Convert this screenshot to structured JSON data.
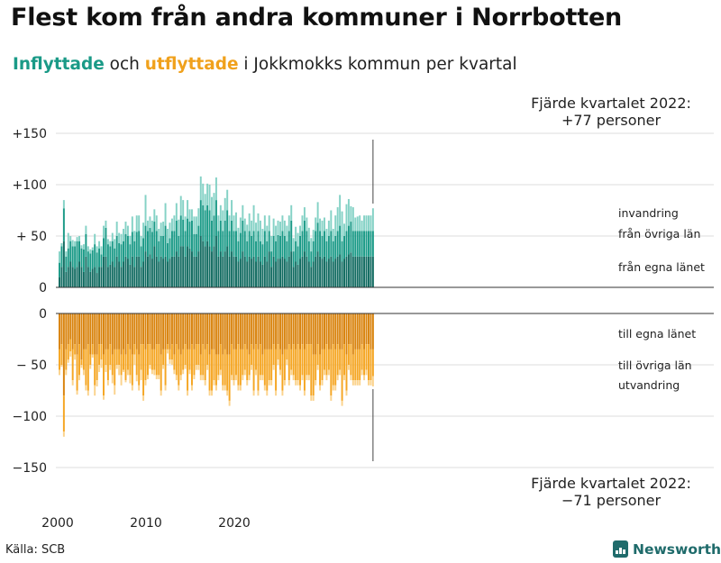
{
  "title": "Flest kom från andra kommuner i Norrbotten",
  "subtitle": {
    "part1": "Inflyttade",
    "part2": " och ",
    "part3": "utflyttade",
    "part4": " i Jokkmokks kommun per kvartal"
  },
  "colors": {
    "in_egna": "#126b61",
    "in_ovriga": "#1a9a87",
    "in_invandring": "#85d2c6",
    "out_egna": "#d9830d",
    "out_ovriga": "#f5a623",
    "out_utvandring": "#fbd38d",
    "grid": "#dddddd",
    "baseline": "#333333"
  },
  "source": "Källa: SCB",
  "brand": {
    "name": "Newsworthy",
    "icon": "bar-chart-logo-icon"
  },
  "chart_data": {
    "type": "bar",
    "stacked": true,
    "diverging": true,
    "x_start": "2000 Q1",
    "x_ticks": [
      "2000",
      "2010",
      "2020"
    ],
    "y_ticks_top": [
      "+150",
      "+100",
      "+ 50",
      "0"
    ],
    "y_ticks_bottom": [
      "0",
      "− 50",
      "−100",
      "−150"
    ],
    "ylim_top": [
      0,
      150
    ],
    "ylim_bottom": [
      -150,
      0
    ],
    "grid": true,
    "annotation_top": {
      "line1": "Fjärde kvartalet 2022:",
      "line2": "+77 personer"
    },
    "annotation_bottom": {
      "line1": "Fjärde kvartalet 2022:",
      "line2": "−71 personer"
    },
    "series_in": [
      {
        "name": "från egna länet",
        "values": [
          10,
          20,
          45,
          15,
          20,
          25,
          20,
          18,
          20,
          25,
          20,
          15,
          30,
          20,
          15,
          18,
          20,
          14,
          20,
          20,
          30,
          30,
          20,
          22,
          25,
          20,
          30,
          25,
          20,
          25,
          30,
          28,
          22,
          30,
          20,
          30,
          30,
          20,
          25,
          35,
          30,
          32,
          28,
          40,
          30,
          25,
          30,
          28,
          30,
          25,
          28,
          30,
          30,
          35,
          30,
          40,
          40,
          30,
          40,
          38,
          35,
          30,
          30,
          35,
          50,
          45,
          40,
          45,
          40,
          35,
          40,
          50,
          30,
          35,
          30,
          35,
          40,
          30,
          35,
          30,
          30,
          25,
          28,
          35,
          30,
          25,
          30,
          28,
          30,
          25,
          30,
          25,
          22,
          30,
          25,
          35,
          20,
          30,
          25,
          28,
          28,
          30,
          28,
          25,
          30,
          35,
          20,
          25,
          22,
          28,
          30,
          35,
          30,
          25,
          20,
          25,
          30,
          35,
          30,
          28,
          30,
          25,
          28,
          30,
          25,
          28,
          30,
          32,
          25,
          28,
          30,
          32,
          34,
          30,
          30,
          30,
          30,
          30,
          30,
          30,
          30,
          30,
          30
        ]
      },
      {
        "name": "från övriga län",
        "values": [
          14,
          20,
          32,
          15,
          18,
          20,
          20,
          22,
          25,
          20,
          18,
          22,
          22,
          15,
          18,
          18,
          22,
          20,
          18,
          12,
          18,
          28,
          22,
          18,
          20,
          18,
          20,
          18,
          22,
          20,
          22,
          22,
          20,
          24,
          25,
          24,
          25,
          20,
          23,
          25,
          25,
          26,
          26,
          24,
          25,
          20,
          20,
          22,
          30,
          18,
          20,
          25,
          25,
          30,
          20,
          30,
          26,
          25,
          27,
          26,
          30,
          22,
          22,
          25,
          35,
          35,
          35,
          35,
          35,
          30,
          30,
          35,
          25,
          30,
          25,
          30,
          35,
          25,
          30,
          25,
          25,
          20,
          25,
          30,
          25,
          20,
          25,
          22,
          25,
          20,
          25,
          20,
          20,
          25,
          20,
          20,
          15,
          20,
          20,
          23,
          22,
          25,
          22,
          20,
          25,
          30,
          15,
          20,
          18,
          22,
          25,
          30,
          25,
          20,
          15,
          20,
          25,
          28,
          25,
          22,
          25,
          20,
          22,
          25,
          20,
          22,
          25,
          28,
          20,
          22,
          25,
          28,
          30,
          25,
          25,
          25,
          25,
          25,
          25,
          25,
          25,
          25,
          25
        ]
      },
      {
        "name": "invandring",
        "values": [
          11,
          3,
          8,
          5,
          15,
          5,
          6,
          5,
          4,
          5,
          3,
          5,
          8,
          5,
          4,
          3,
          10,
          6,
          7,
          8,
          12,
          7,
          5,
          5,
          8,
          9,
          14,
          10,
          10,
          12,
          12,
          10,
          8,
          15,
          10,
          16,
          15,
          10,
          15,
          30,
          10,
          11,
          11,
          12,
          15,
          12,
          13,
          14,
          22,
          14,
          15,
          12,
          15,
          17,
          16,
          19,
          19,
          14,
          18,
          12,
          11,
          17,
          17,
          17,
          23,
          21,
          16,
          21,
          25,
          23,
          22,
          22,
          15,
          15,
          20,
          22,
          20,
          15,
          20,
          15,
          18,
          13,
          15,
          15,
          12,
          16,
          17,
          15,
          25,
          18,
          17,
          20,
          15,
          15,
          15,
          15,
          15,
          17,
          15,
          14,
          14,
          15,
          15,
          15,
          15,
          15,
          13,
          14,
          13,
          10,
          15,
          13,
          13,
          13,
          13,
          11,
          13,
          20,
          12,
          15,
          13,
          12,
          15,
          20,
          12,
          20,
          23,
          30,
          29,
          12,
          26,
          26,
          15,
          23,
          13,
          14,
          15,
          10,
          15,
          15,
          15,
          15,
          22
        ]
      }
    ],
    "series_out": [
      {
        "name": "till egna länet",
        "values": [
          -35,
          -30,
          -80,
          -35,
          -30,
          -25,
          -35,
          -30,
          -40,
          -30,
          -45,
          -35,
          -35,
          -30,
          -40,
          -30,
          -40,
          -40,
          -30,
          -30,
          -40,
          -35,
          -35,
          -30,
          -40,
          -35,
          -35,
          -35,
          -40,
          -35,
          -40,
          -30,
          -35,
          -40,
          -30,
          -35,
          -40,
          -30,
          -30,
          -35,
          -30,
          -30,
          -35,
          -35,
          -30,
          -30,
          -40,
          -35,
          -35,
          -30,
          -35,
          -30,
          -40,
          -30,
          -35,
          -40,
          -35,
          -30,
          -35,
          -35,
          -30,
          -35,
          -30,
          -30,
          -40,
          -30,
          -35,
          -30,
          -40,
          -35,
          -35,
          -40,
          -40,
          -30,
          -40,
          -35,
          -40,
          -40,
          -30,
          -35,
          -35,
          -30,
          -35,
          -35,
          -30,
          -35,
          -40,
          -30,
          -35,
          -30,
          -35,
          -30,
          -40,
          -35,
          -35,
          -35,
          -35,
          -30,
          -35,
          -30,
          -35,
          -40,
          -35,
          -35,
          -30,
          -35,
          -30,
          -35,
          -30,
          -35,
          -30,
          -35,
          -30,
          -30,
          -30,
          -40,
          -40,
          -30,
          -40,
          -35,
          -35,
          -30,
          -35,
          -35,
          -30,
          -35,
          -30,
          -35,
          -35,
          -30,
          -40,
          -30,
          -30,
          -40,
          -35,
          -35,
          -35,
          -30,
          -35,
          -30,
          -30,
          -35,
          -35
        ]
      },
      {
        "name": "till övriga län",
        "values": [
          -20,
          -20,
          -35,
          -20,
          -15,
          -12,
          -30,
          -10,
          -35,
          -30,
          -5,
          -20,
          -35,
          -45,
          -10,
          -10,
          -30,
          -25,
          -20,
          -15,
          -40,
          -15,
          -30,
          -20,
          -20,
          -35,
          -15,
          -15,
          -20,
          -20,
          -25,
          -25,
          -25,
          -30,
          -10,
          -25,
          -30,
          -25,
          -50,
          -30,
          -30,
          -20,
          -20,
          -20,
          -30,
          -30,
          -35,
          -15,
          -35,
          -5,
          -10,
          -15,
          -15,
          -30,
          -35,
          -20,
          -20,
          -20,
          -40,
          -20,
          -40,
          -25,
          -20,
          -20,
          -20,
          -30,
          -30,
          -20,
          -35,
          -40,
          -30,
          -30,
          -20,
          -25,
          -30,
          -35,
          -35,
          -45,
          -30,
          -30,
          -25,
          -40,
          -35,
          -25,
          -25,
          -30,
          -20,
          -20,
          -40,
          -25,
          -40,
          -30,
          -20,
          -35,
          -40,
          -30,
          -30,
          -20,
          -40,
          -15,
          -20,
          -35,
          -30,
          -10,
          -35,
          -20,
          -30,
          -30,
          -35,
          -35,
          -30,
          -40,
          -30,
          -30,
          -50,
          -40,
          -25,
          -20,
          -30,
          -30,
          -20,
          -30,
          -20,
          -45,
          -40,
          -35,
          -30,
          -20,
          -50,
          -30,
          -35,
          -20,
          -30,
          -25,
          -30,
          -30,
          -30,
          -25,
          -25,
          -25,
          -35,
          -30,
          -26
        ]
      },
      {
        "name": "utvandring",
        "values": [
          -5,
          -2,
          -5,
          -5,
          -3,
          -5,
          -5,
          -5,
          -4,
          -5,
          -3,
          -5,
          -5,
          -5,
          -4,
          -3,
          -10,
          -6,
          -7,
          -8,
          -4,
          -7,
          -5,
          -5,
          -8,
          -9,
          -4,
          -10,
          -10,
          -2,
          -2,
          -5,
          -8,
          -5,
          -10,
          -6,
          -5,
          -10,
          -5,
          -5,
          -4,
          -4,
          -4,
          -5,
          -4,
          -4,
          -5,
          -4,
          -5,
          -4,
          -4,
          -5,
          -4,
          -5,
          -5,
          -5,
          -4,
          -4,
          -5,
          -4,
          -5,
          -4,
          -5,
          -5,
          -5,
          -5,
          -5,
          -5,
          -5,
          -5,
          -5,
          -5,
          -5,
          -5,
          -5,
          -5,
          -5,
          -5,
          -5,
          -5,
          -5,
          -5,
          -5,
          -5,
          -5,
          -5,
          -5,
          -5,
          -5,
          -5,
          -5,
          -5,
          -5,
          -5,
          -5,
          -5,
          -5,
          -5,
          -5,
          -5,
          -5,
          -5,
          -5,
          -5,
          -5,
          -5,
          -5,
          -5,
          -5,
          -5,
          -5,
          -5,
          -5,
          -5,
          -5,
          -5,
          -5,
          -5,
          -5,
          -5,
          -5,
          -5,
          -5,
          -5,
          -5,
          -5,
          -5,
          -5,
          -5,
          -5,
          -5,
          -5,
          -5,
          -5,
          -5,
          -5,
          -5,
          -5,
          -5,
          -5,
          -5,
          -5,
          -10
        ]
      }
    ],
    "legend_in": [
      "invandring",
      "från övriga län",
      "från egna länet"
    ],
    "legend_out": [
      "till egna länet",
      "till övriga län",
      "utvandring"
    ]
  }
}
